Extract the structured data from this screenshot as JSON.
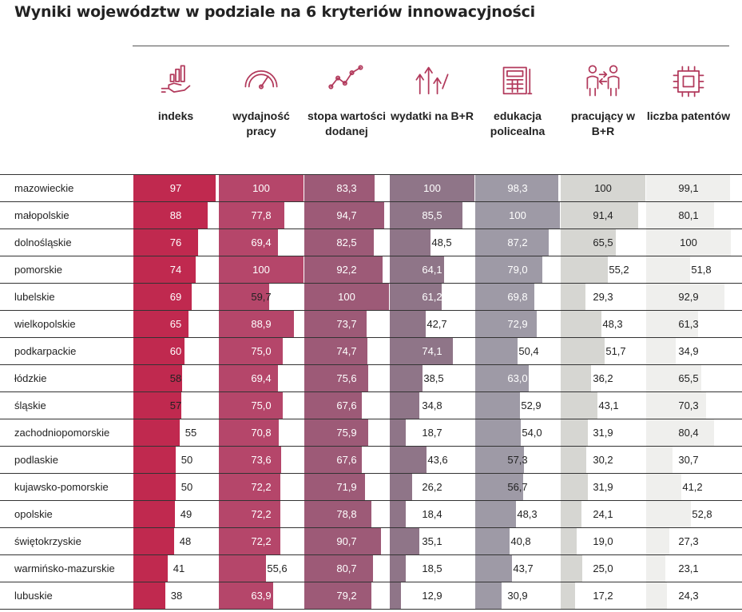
{
  "title": "Wyniki województw w podziale na 6 kryteriów innowacyjności",
  "columns": [
    {
      "label": "indeks",
      "icon": "hand-chart-icon",
      "color": "#c0294f"
    },
    {
      "label": "wydajność pracy",
      "icon": "gauge-icon",
      "color": "#b5466a"
    },
    {
      "label": "stopa wartości dodanej",
      "icon": "line-chart-icon",
      "color": "#9d5a77"
    },
    {
      "label": "wydatki na B+R",
      "icon": "rising-arrows-icon",
      "color": "#8f7588"
    },
    {
      "label": "edukacja policealna",
      "icon": "calculator-icon",
      "color": "#9e9aa6"
    },
    {
      "label": "pracujący w B+R",
      "icon": "people-exchange-icon",
      "color": "#d6d6d2"
    },
    {
      "label": "liczba patentów",
      "icon": "chip-icon",
      "color": "#efefed"
    }
  ],
  "chart_data": {
    "type": "table",
    "title": "Wyniki województw w podziale na 6 kryteriów innowacyjności",
    "columns": [
      "indeks",
      "wydajność pracy",
      "stopa wartości dodanej",
      "wydatki na B+R",
      "edukacja policealna",
      "pracujący w B+R",
      "liczba patentów"
    ],
    "rows": [
      {
        "name": "mazowieckie",
        "values": [
          "97",
          "100",
          "83,3",
          "100",
          "98,3",
          "100",
          "99,1"
        ]
      },
      {
        "name": "małopolskie",
        "values": [
          "88",
          "77,8",
          "94,7",
          "85,5",
          "100",
          "91,4",
          "80,1"
        ]
      },
      {
        "name": "dolnośląskie",
        "values": [
          "76",
          "69,4",
          "82,5",
          "48,5",
          "87,2",
          "65,5",
          "100"
        ]
      },
      {
        "name": "pomorskie",
        "values": [
          "74",
          "100",
          "92,2",
          "64,1",
          "79,0",
          "55,2",
          "51,8"
        ]
      },
      {
        "name": "lubelskie",
        "values": [
          "69",
          "59,7",
          "100",
          "61,2",
          "69,8",
          "29,3",
          "92,9"
        ]
      },
      {
        "name": "wielkopolskie",
        "values": [
          "65",
          "88,9",
          "73,7",
          "42,7",
          "72,9",
          "48,3",
          "61,3"
        ]
      },
      {
        "name": "podkarpackie",
        "values": [
          "60",
          "75,0",
          "74,7",
          "74,1",
          "50,4",
          "51,7",
          "34,9"
        ]
      },
      {
        "name": "łódzkie",
        "values": [
          "58",
          "69,4",
          "75,6",
          "38,5",
          "63,0",
          "36,2",
          "65,5"
        ]
      },
      {
        "name": "śląskie",
        "values": [
          "57",
          "75,0",
          "67,6",
          "34,8",
          "52,9",
          "43,1",
          "70,3"
        ]
      },
      {
        "name": "zachodniopomorskie",
        "values": [
          "55",
          "70,8",
          "75,9",
          "18,7",
          "54,0",
          "31,9",
          "80,4"
        ]
      },
      {
        "name": "podlaskie",
        "values": [
          "50",
          "73,6",
          "67,6",
          "43,6",
          "57,3",
          "30,2",
          "30,7"
        ]
      },
      {
        "name": "kujawsko-pomorskie",
        "values": [
          "50",
          "72,2",
          "71,9",
          "26,2",
          "56,7",
          "31,9",
          "41,2"
        ]
      },
      {
        "name": "opolskie",
        "values": [
          "49",
          "72,2",
          "78,8",
          "18,4",
          "48,3",
          "24,1",
          "52,8"
        ]
      },
      {
        "name": "świętokrzyskie",
        "values": [
          "48",
          "72,2",
          "90,7",
          "35,1",
          "40,8",
          "19,0",
          "27,3"
        ]
      },
      {
        "name": "warmińsko-mazurskie",
        "values": [
          "41",
          "55,6",
          "80,7",
          "18,5",
          "43,7",
          "25,0",
          "23,1"
        ]
      },
      {
        "name": "lubuskie",
        "values": [
          "38",
          "63,9",
          "79,2",
          "12,9",
          "30,9",
          "17,2",
          "24,3"
        ]
      }
    ]
  }
}
